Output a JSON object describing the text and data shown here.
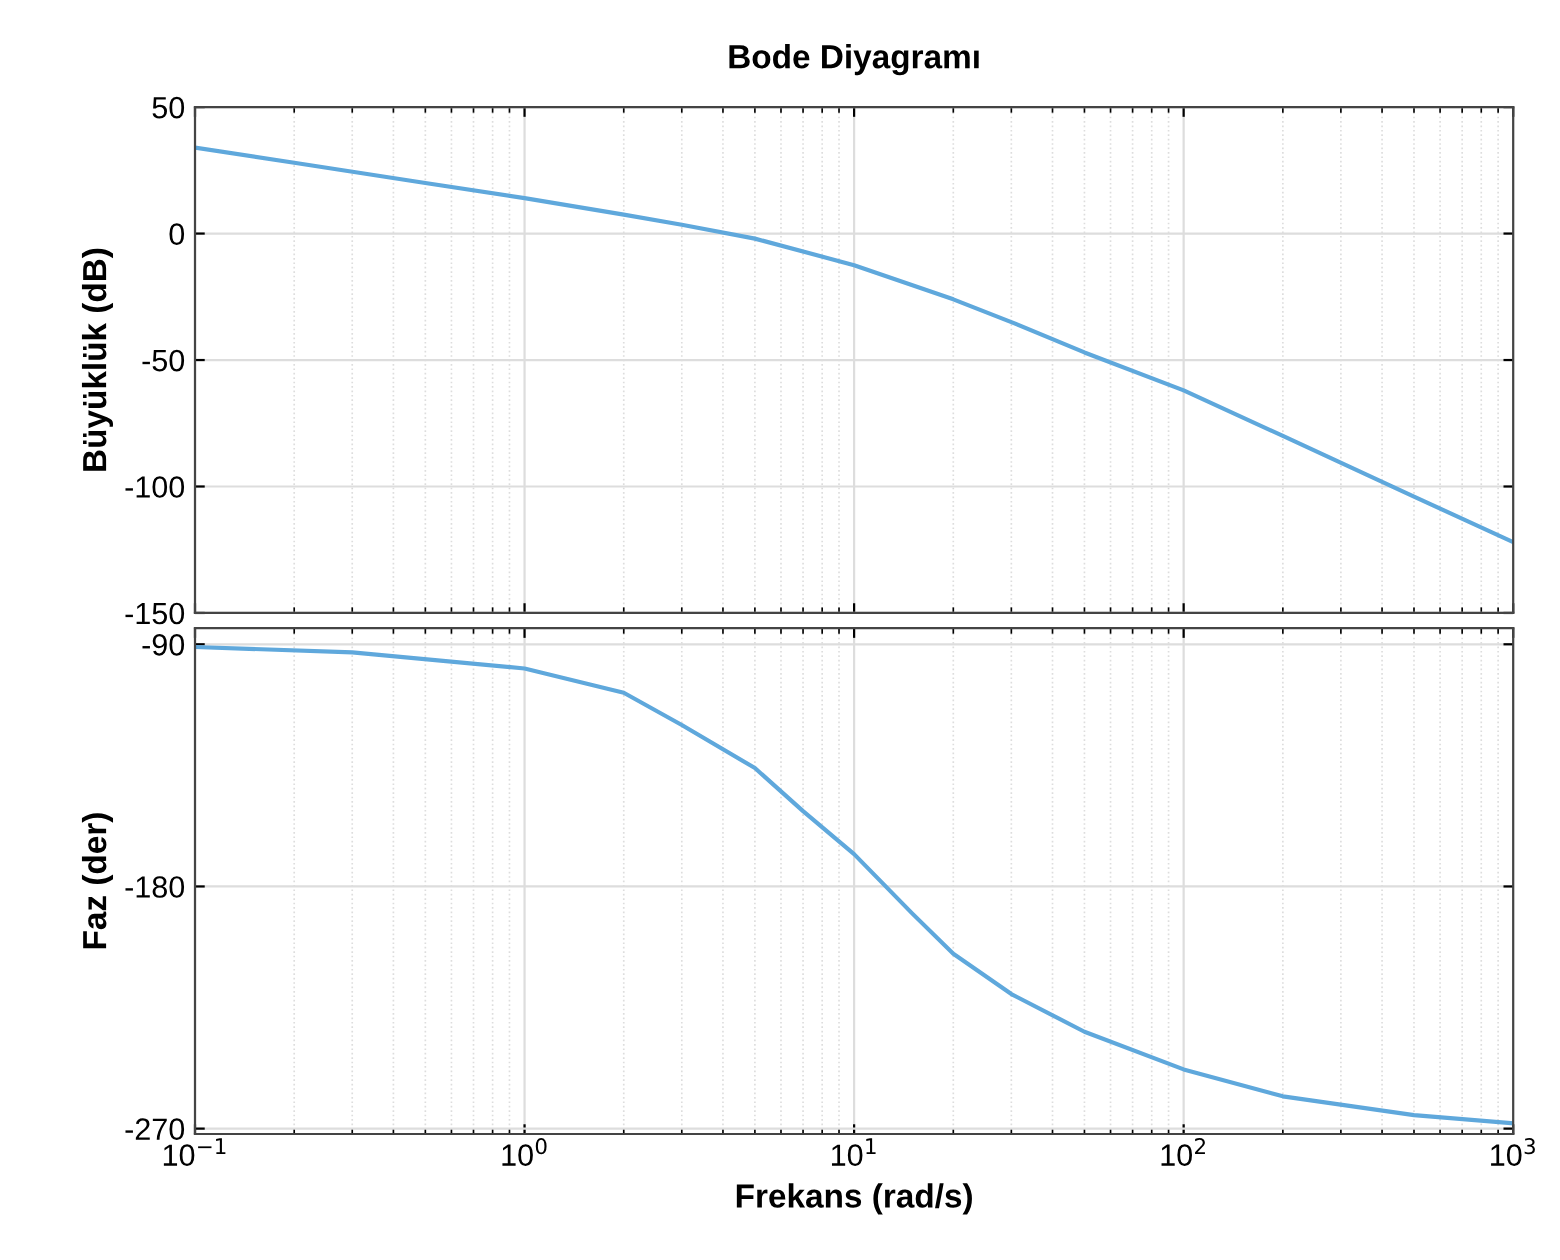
{
  "chart_data": [
    {
      "type": "line",
      "title": "Bode Diyagramı",
      "ylabel": "Büyüklük (dB)",
      "log": "x",
      "grid": true,
      "tick_labels": "y",
      "xlim": [
        0.1,
        1000
      ],
      "xticks": [
        {
          "value": 0.1,
          "label": null
        },
        {
          "value": 1,
          "label": null
        },
        {
          "value": 10,
          "label": null
        },
        {
          "value": 100,
          "label": null
        },
        {
          "value": 1000,
          "label": null
        }
      ],
      "ylim": [
        -150,
        50
      ],
      "yticks": [
        -150,
        -100,
        -50,
        0,
        50
      ],
      "series": [
        {
          "color": "#5fa8dc",
          "x": [
            0.1,
            0.2,
            0.5,
            1,
            2,
            3,
            5,
            10,
            20,
            30,
            50,
            100,
            200,
            500,
            1000
          ],
          "values": [
            34,
            28,
            20,
            14,
            7.5,
            3.5,
            -2,
            -12.5,
            -26,
            -35,
            -47,
            -62,
            -80,
            -104,
            -122
          ]
        }
      ]
    },
    {
      "type": "line",
      "xlabel": "Frekans (rad/s)",
      "ylabel": "Faz (der)",
      "log": "x",
      "grid": true,
      "xlim": [
        0.1,
        1000
      ],
      "xticks": [
        {
          "value": 0.1,
          "label": "10$^{−1}$"
        },
        {
          "value": 1,
          "label": "10$^{0}$"
        },
        {
          "value": 10,
          "label": "10$^{1}$"
        },
        {
          "value": 100,
          "label": "10$^{2}$"
        },
        {
          "value": 1000,
          "label": "10$^{3}$"
        }
      ],
      "ylim": [
        -272,
        -84
      ],
      "yticks": [
        -270,
        -180,
        -90
      ],
      "series": [
        {
          "color": "#5fa8dc",
          "x": [
            0.1,
            0.3,
            1,
            2,
            3,
            5,
            7,
            10,
            15,
            20,
            30,
            50,
            100,
            200,
            500,
            1000
          ],
          "values": [
            -91,
            -93,
            -99,
            -108,
            -120,
            -136,
            -152,
            -168,
            -190,
            -205,
            -220,
            -234,
            -248,
            -258,
            -265,
            -268
          ]
        }
      ]
    }
  ]
}
